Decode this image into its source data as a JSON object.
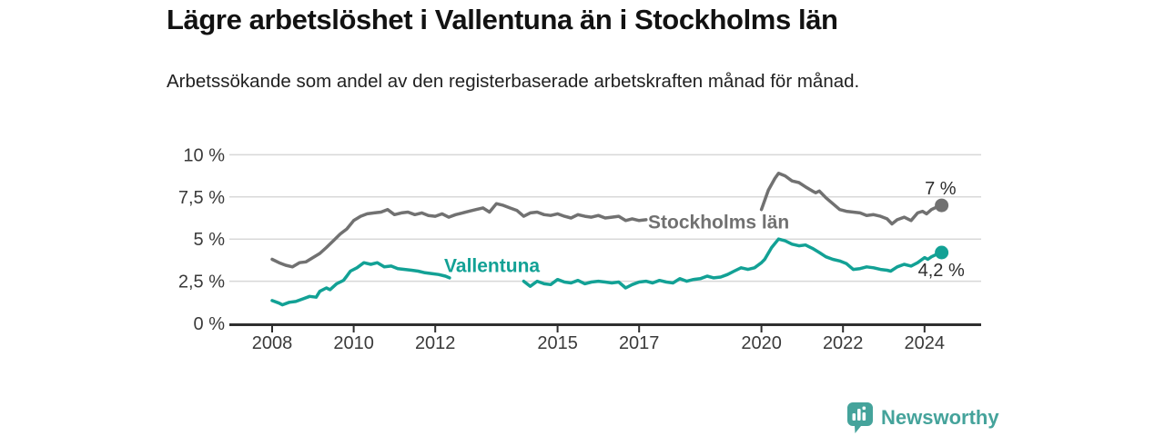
{
  "header": {
    "title": "Lägre arbetslöshet i Vallentuna än i Stockholms län",
    "subtitle": "Arbetssökande som andel av den registerbaserade arbetskraften månad för månad."
  },
  "footer": {
    "brand": "Newsworthy",
    "brand_color": "#45a39b"
  },
  "chart_data": {
    "type": "line",
    "title": "Lägre arbetslöshet i Vallentuna än i Stockholms län",
    "xlabel": "",
    "ylabel": "",
    "ylim": [
      0,
      10
    ],
    "xlim": [
      2007.4,
      2025.4
    ],
    "grid": true,
    "legend_position": "inline-labels",
    "style": {
      "grid_color": "#d8d8d8",
      "axis_color": "#2e2e2e",
      "tick_color": "#3a3a3a",
      "end_label_color": "#2d2d2d"
    },
    "yticks": [
      {
        "value": 0,
        "label": "0 %"
      },
      {
        "value": 2.5,
        "label": "2,5 %"
      },
      {
        "value": 5,
        "label": "5 %"
      },
      {
        "value": 7.5,
        "label": "7,5 %"
      },
      {
        "value": 10,
        "label": "10 %"
      }
    ],
    "xticks": [
      2008,
      2010,
      2012,
      2015,
      2017,
      2020,
      2022,
      2024
    ],
    "series": [
      {
        "name": "Stockholms län",
        "color": "#717171",
        "label": {
          "text": "Stockholms län",
          "year": 2017.22,
          "pct": 5.62,
          "anchor": "start"
        },
        "gap": [
          2017.25,
          2019.9
        ],
        "end_label": {
          "text": "7 %",
          "dx": 16,
          "dy": -12,
          "anchor": "end"
        },
        "points": [
          [
            2008.0,
            3.8
          ],
          [
            2008.17,
            3.6
          ],
          [
            2008.33,
            3.45
          ],
          [
            2008.5,
            3.35
          ],
          [
            2008.67,
            3.6
          ],
          [
            2008.83,
            3.65
          ],
          [
            2009.0,
            3.9
          ],
          [
            2009.17,
            4.15
          ],
          [
            2009.33,
            4.5
          ],
          [
            2009.5,
            4.9
          ],
          [
            2009.67,
            5.3
          ],
          [
            2009.83,
            5.6
          ],
          [
            2010.0,
            6.1
          ],
          [
            2010.17,
            6.35
          ],
          [
            2010.33,
            6.5
          ],
          [
            2010.5,
            6.55
          ],
          [
            2010.67,
            6.6
          ],
          [
            2010.83,
            6.75
          ],
          [
            2011.0,
            6.45
          ],
          [
            2011.17,
            6.55
          ],
          [
            2011.33,
            6.6
          ],
          [
            2011.5,
            6.45
          ],
          [
            2011.67,
            6.55
          ],
          [
            2011.83,
            6.4
          ],
          [
            2012.0,
            6.35
          ],
          [
            2012.17,
            6.5
          ],
          [
            2012.33,
            6.3
          ],
          [
            2012.5,
            6.45
          ],
          [
            2012.67,
            6.55
          ],
          [
            2012.83,
            6.65
          ],
          [
            2013.0,
            6.75
          ],
          [
            2013.17,
            6.85
          ],
          [
            2013.33,
            6.6
          ],
          [
            2013.5,
            7.1
          ],
          [
            2013.67,
            7.0
          ],
          [
            2013.83,
            6.85
          ],
          [
            2014.0,
            6.7
          ],
          [
            2014.17,
            6.35
          ],
          [
            2014.33,
            6.55
          ],
          [
            2014.5,
            6.6
          ],
          [
            2014.67,
            6.45
          ],
          [
            2014.83,
            6.4
          ],
          [
            2015.0,
            6.5
          ],
          [
            2015.17,
            6.35
          ],
          [
            2015.33,
            6.25
          ],
          [
            2015.5,
            6.45
          ],
          [
            2015.67,
            6.35
          ],
          [
            2015.83,
            6.3
          ],
          [
            2016.0,
            6.4
          ],
          [
            2016.17,
            6.25
          ],
          [
            2016.33,
            6.3
          ],
          [
            2016.5,
            6.35
          ],
          [
            2016.67,
            6.1
          ],
          [
            2016.83,
            6.2
          ],
          [
            2017.0,
            6.1
          ],
          [
            2017.17,
            6.15
          ],
          [
            2017.33,
            6.0
          ],
          [
            2017.58,
            6.0
          ],
          [
            2017.83,
            5.95
          ],
          [
            2018.08,
            5.9
          ],
          [
            2018.33,
            5.85
          ],
          [
            2018.58,
            5.9
          ],
          [
            2018.83,
            5.85
          ],
          [
            2019.08,
            5.9
          ],
          [
            2019.33,
            5.95
          ],
          [
            2019.58,
            6.0
          ],
          [
            2019.83,
            6.2
          ],
          [
            2020.0,
            6.75
          ],
          [
            2020.17,
            7.9
          ],
          [
            2020.33,
            8.6
          ],
          [
            2020.42,
            8.9
          ],
          [
            2020.58,
            8.75
          ],
          [
            2020.75,
            8.45
          ],
          [
            2020.92,
            8.35
          ],
          [
            2021.08,
            8.1
          ],
          [
            2021.25,
            7.85
          ],
          [
            2021.33,
            7.75
          ],
          [
            2021.42,
            7.85
          ],
          [
            2021.58,
            7.45
          ],
          [
            2021.75,
            7.1
          ],
          [
            2021.92,
            6.75
          ],
          [
            2022.08,
            6.65
          ],
          [
            2022.25,
            6.6
          ],
          [
            2022.42,
            6.55
          ],
          [
            2022.58,
            6.4
          ],
          [
            2022.75,
            6.45
          ],
          [
            2022.92,
            6.35
          ],
          [
            2023.08,
            6.2
          ],
          [
            2023.2,
            5.9
          ],
          [
            2023.33,
            6.15
          ],
          [
            2023.5,
            6.3
          ],
          [
            2023.67,
            6.1
          ],
          [
            2023.83,
            6.55
          ],
          [
            2023.95,
            6.65
          ],
          [
            2024.05,
            6.5
          ],
          [
            2024.17,
            6.75
          ],
          [
            2024.3,
            6.9
          ],
          [
            2024.42,
            7.0
          ]
        ]
      },
      {
        "name": "Vallentuna",
        "color": "#12a195",
        "label": {
          "text": "Vallentuna",
          "year": 2012.22,
          "pct": 3.05,
          "anchor": "start"
        },
        "gap": [
          2012.4,
          2014.1
        ],
        "end_label": {
          "text": "4,2 %",
          "dx": -26,
          "dy": 26,
          "anchor": "start"
        },
        "points": [
          [
            2008.0,
            1.35
          ],
          [
            2008.17,
            1.2
          ],
          [
            2008.25,
            1.1
          ],
          [
            2008.42,
            1.25
          ],
          [
            2008.58,
            1.3
          ],
          [
            2008.75,
            1.45
          ],
          [
            2008.92,
            1.6
          ],
          [
            2009.08,
            1.55
          ],
          [
            2009.17,
            1.9
          ],
          [
            2009.33,
            2.1
          ],
          [
            2009.42,
            2.0
          ],
          [
            2009.58,
            2.35
          ],
          [
            2009.75,
            2.55
          ],
          [
            2009.83,
            2.8
          ],
          [
            2009.92,
            3.1
          ],
          [
            2010.08,
            3.3
          ],
          [
            2010.25,
            3.6
          ],
          [
            2010.42,
            3.5
          ],
          [
            2010.58,
            3.6
          ],
          [
            2010.75,
            3.35
          ],
          [
            2010.92,
            3.4
          ],
          [
            2011.08,
            3.25
          ],
          [
            2011.25,
            3.2
          ],
          [
            2011.42,
            3.15
          ],
          [
            2011.58,
            3.1
          ],
          [
            2011.75,
            3.0
          ],
          [
            2011.92,
            2.95
          ],
          [
            2012.08,
            2.9
          ],
          [
            2012.25,
            2.8
          ],
          [
            2012.35,
            2.7
          ],
          [
            2012.58,
            2.65
          ],
          [
            2012.83,
            2.6
          ],
          [
            2013.08,
            2.55
          ],
          [
            2013.33,
            2.5
          ],
          [
            2013.58,
            2.45
          ],
          [
            2013.83,
            2.4
          ],
          [
            2014.0,
            2.45
          ],
          [
            2014.17,
            2.5
          ],
          [
            2014.33,
            2.2
          ],
          [
            2014.5,
            2.5
          ],
          [
            2014.67,
            2.35
          ],
          [
            2014.83,
            2.3
          ],
          [
            2015.0,
            2.6
          ],
          [
            2015.17,
            2.45
          ],
          [
            2015.33,
            2.4
          ],
          [
            2015.5,
            2.55
          ],
          [
            2015.67,
            2.35
          ],
          [
            2015.83,
            2.45
          ],
          [
            2016.0,
            2.5
          ],
          [
            2016.17,
            2.45
          ],
          [
            2016.33,
            2.4
          ],
          [
            2016.5,
            2.45
          ],
          [
            2016.67,
            2.1
          ],
          [
            2016.83,
            2.3
          ],
          [
            2017.0,
            2.45
          ],
          [
            2017.17,
            2.5
          ],
          [
            2017.33,
            2.4
          ],
          [
            2017.5,
            2.55
          ],
          [
            2017.67,
            2.45
          ],
          [
            2017.83,
            2.4
          ],
          [
            2018.0,
            2.65
          ],
          [
            2018.17,
            2.5
          ],
          [
            2018.33,
            2.6
          ],
          [
            2018.5,
            2.65
          ],
          [
            2018.67,
            2.8
          ],
          [
            2018.83,
            2.7
          ],
          [
            2019.0,
            2.75
          ],
          [
            2019.17,
            2.9
          ],
          [
            2019.33,
            3.1
          ],
          [
            2019.5,
            3.3
          ],
          [
            2019.67,
            3.2
          ],
          [
            2019.83,
            3.3
          ],
          [
            2020.0,
            3.6
          ],
          [
            2020.08,
            3.8
          ],
          [
            2020.25,
            4.5
          ],
          [
            2020.42,
            5.0
          ],
          [
            2020.58,
            4.9
          ],
          [
            2020.75,
            4.7
          ],
          [
            2020.92,
            4.6
          ],
          [
            2021.08,
            4.65
          ],
          [
            2021.25,
            4.45
          ],
          [
            2021.42,
            4.2
          ],
          [
            2021.58,
            3.95
          ],
          [
            2021.75,
            3.8
          ],
          [
            2021.92,
            3.7
          ],
          [
            2022.08,
            3.55
          ],
          [
            2022.25,
            3.2
          ],
          [
            2022.42,
            3.25
          ],
          [
            2022.58,
            3.35
          ],
          [
            2022.75,
            3.3
          ],
          [
            2022.92,
            3.2
          ],
          [
            2023.08,
            3.15
          ],
          [
            2023.17,
            3.1
          ],
          [
            2023.33,
            3.35
          ],
          [
            2023.5,
            3.5
          ],
          [
            2023.67,
            3.4
          ],
          [
            2023.83,
            3.6
          ],
          [
            2024.0,
            3.9
          ],
          [
            2024.08,
            3.8
          ],
          [
            2024.17,
            3.95
          ],
          [
            2024.3,
            4.1
          ],
          [
            2024.42,
            4.2
          ]
        ]
      }
    ]
  }
}
